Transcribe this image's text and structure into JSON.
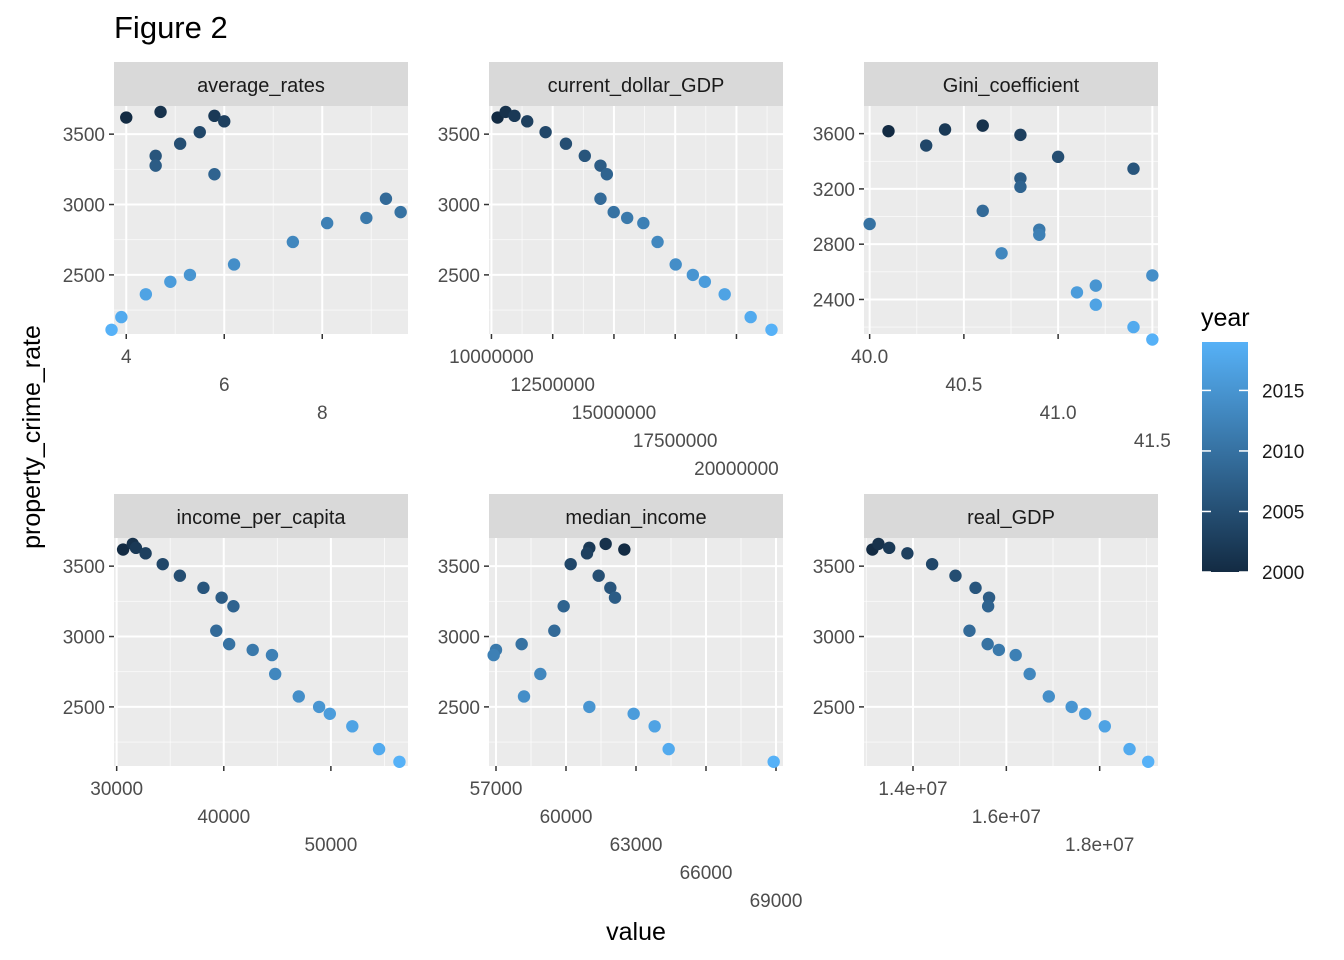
{
  "page": {
    "title": "Figure 2"
  },
  "chart_data": {
    "type": "scatter",
    "title": "Figure 2",
    "xlabel": "value",
    "ylabel": "property_crime_rate",
    "legend": {
      "title": "year",
      "placement": "right",
      "ticks": [
        2000,
        2005,
        2010,
        2015
      ],
      "range": [
        2000,
        2019
      ],
      "colors": {
        "low": "#132b43",
        "high": "#56b1f7"
      }
    },
    "grid": true,
    "colors": {
      "panel_bg": "#ebebeb",
      "strip_bg": "#d9d9d9",
      "grid_major": "#ffffff"
    },
    "panels": [
      {
        "name": "average_rates",
        "xlim": [
          3.75,
          9.75
        ],
        "ylim": [
          2080,
          3700
        ],
        "x_ticks": [
          4,
          6,
          8
        ],
        "x_tick_labels": [
          "4",
          "6",
          "8"
        ],
        "y_ticks": [
          2500,
          3000,
          3500
        ],
        "y_tick_labels": [
          "2500",
          "3000",
          "3500"
        ],
        "points": [
          {
            "x": 4.0,
            "y": 3618,
            "year": 2000
          },
          {
            "x": 4.7,
            "y": 3658,
            "year": 2001
          },
          {
            "x": 5.8,
            "y": 3630,
            "year": 2002
          },
          {
            "x": 6.0,
            "y": 3591,
            "year": 2003
          },
          {
            "x": 5.5,
            "y": 3514,
            "year": 2004
          },
          {
            "x": 5.1,
            "y": 3432,
            "year": 2005
          },
          {
            "x": 4.6,
            "y": 3346,
            "year": 2006
          },
          {
            "x": 4.6,
            "y": 3276,
            "year": 2007
          },
          {
            "x": 5.8,
            "y": 3215,
            "year": 2008
          },
          {
            "x": 9.3,
            "y": 3041,
            "year": 2009
          },
          {
            "x": 9.6,
            "y": 2946,
            "year": 2010
          },
          {
            "x": 8.9,
            "y": 2905,
            "year": 2011
          },
          {
            "x": 8.1,
            "y": 2868,
            "year": 2012
          },
          {
            "x": 7.4,
            "y": 2734,
            "year": 2013
          },
          {
            "x": 6.2,
            "y": 2574,
            "year": 2014
          },
          {
            "x": 5.3,
            "y": 2500,
            "year": 2015
          },
          {
            "x": 4.9,
            "y": 2451,
            "year": 2016
          },
          {
            "x": 4.4,
            "y": 2362,
            "year": 2017
          },
          {
            "x": 3.9,
            "y": 2200,
            "year": 2018
          },
          {
            "x": 3.7,
            "y": 2110,
            "year": 2019
          }
        ]
      },
      {
        "name": "current_dollar_GDP",
        "xlim": [
          9900000,
          21900000
        ],
        "ylim": [
          2080,
          3700
        ],
        "x_ticks": [
          10000000,
          12500000,
          15000000,
          17500000,
          20000000
        ],
        "x_tick_labels": [
          "10000000",
          "12500000",
          "15000000",
          "17500000",
          "20000000"
        ],
        "y_ticks": [
          2500,
          3000,
          3500
        ],
        "y_tick_labels": [
          "2500",
          "3000",
          "3500"
        ],
        "points": [
          {
            "x": 10250000,
            "y": 3618,
            "year": 2000
          },
          {
            "x": 10580000,
            "y": 3658,
            "year": 2001
          },
          {
            "x": 10940000,
            "y": 3630,
            "year": 2002
          },
          {
            "x": 11460000,
            "y": 3591,
            "year": 2003
          },
          {
            "x": 12210000,
            "y": 3514,
            "year": 2004
          },
          {
            "x": 13040000,
            "y": 3432,
            "year": 2005
          },
          {
            "x": 13810000,
            "y": 3346,
            "year": 2006
          },
          {
            "x": 14450000,
            "y": 3276,
            "year": 2007
          },
          {
            "x": 14710000,
            "y": 3215,
            "year": 2008
          },
          {
            "x": 14450000,
            "y": 3041,
            "year": 2009
          },
          {
            "x": 14990000,
            "y": 2946,
            "year": 2010
          },
          {
            "x": 15540000,
            "y": 2905,
            "year": 2011
          },
          {
            "x": 16200000,
            "y": 2868,
            "year": 2012
          },
          {
            "x": 16780000,
            "y": 2734,
            "year": 2013
          },
          {
            "x": 17520000,
            "y": 2574,
            "year": 2014
          },
          {
            "x": 18220000,
            "y": 2500,
            "year": 2015
          },
          {
            "x": 18710000,
            "y": 2451,
            "year": 2016
          },
          {
            "x": 19520000,
            "y": 2362,
            "year": 2017
          },
          {
            "x": 20580000,
            "y": 2200,
            "year": 2018
          },
          {
            "x": 21430000,
            "y": 2110,
            "year": 2019
          }
        ]
      },
      {
        "name": "Gini_coefficient",
        "xlim": [
          39.97,
          41.53
        ],
        "ylim": [
          2150,
          3800
        ],
        "x_ticks": [
          40.0,
          40.5,
          41.0,
          41.5
        ],
        "x_tick_labels": [
          "40.0",
          "40.5",
          "41.0",
          "41.5"
        ],
        "y_ticks": [
          2400,
          2800,
          3200,
          3600
        ],
        "y_tick_labels": [
          "2400",
          "2800",
          "3200",
          "3600"
        ],
        "points": [
          {
            "x": 40.1,
            "y": 3618,
            "year": 2000
          },
          {
            "x": 40.6,
            "y": 3658,
            "year": 2001
          },
          {
            "x": 40.4,
            "y": 3630,
            "year": 2002
          },
          {
            "x": 40.8,
            "y": 3591,
            "year": 2003
          },
          {
            "x": 40.3,
            "y": 3514,
            "year": 2004
          },
          {
            "x": 41.0,
            "y": 3432,
            "year": 2005
          },
          {
            "x": 41.4,
            "y": 3346,
            "year": 2006
          },
          {
            "x": 40.8,
            "y": 3276,
            "year": 2007
          },
          {
            "x": 40.8,
            "y": 3215,
            "year": 2008
          },
          {
            "x": 40.6,
            "y": 3041,
            "year": 2009
          },
          {
            "x": 40.0,
            "y": 2946,
            "year": 2010
          },
          {
            "x": 40.9,
            "y": 2905,
            "year": 2011
          },
          {
            "x": 40.9,
            "y": 2868,
            "year": 2012
          },
          {
            "x": 40.7,
            "y": 2734,
            "year": 2013
          },
          {
            "x": 41.5,
            "y": 2574,
            "year": 2014
          },
          {
            "x": 41.2,
            "y": 2500,
            "year": 2015
          },
          {
            "x": 41.1,
            "y": 2451,
            "year": 2016
          },
          {
            "x": 41.2,
            "y": 2362,
            "year": 2017
          },
          {
            "x": 41.4,
            "y": 2200,
            "year": 2018
          },
          {
            "x": 41.5,
            "y": 2110,
            "year": 2019
          }
        ]
      },
      {
        "name": "income_per_capita",
        "xlim": [
          29750,
          57200
        ],
        "ylim": [
          2080,
          3700
        ],
        "x_ticks": [
          30000,
          40000,
          50000
        ],
        "x_tick_labels": [
          "30000",
          "40000",
          "50000"
        ],
        "y_ticks": [
          2500,
          3000,
          3500
        ],
        "y_tick_labels": [
          "2500",
          "3000",
          "3500"
        ],
        "points": [
          {
            "x": 30600,
            "y": 3618,
            "year": 2000
          },
          {
            "x": 31500,
            "y": 3658,
            "year": 2001
          },
          {
            "x": 31800,
            "y": 3630,
            "year": 2002
          },
          {
            "x": 32700,
            "y": 3591,
            "year": 2003
          },
          {
            "x": 34300,
            "y": 3514,
            "year": 2004
          },
          {
            "x": 35900,
            "y": 3432,
            "year": 2005
          },
          {
            "x": 38100,
            "y": 3346,
            "year": 2006
          },
          {
            "x": 39800,
            "y": 3276,
            "year": 2007
          },
          {
            "x": 40900,
            "y": 3215,
            "year": 2008
          },
          {
            "x": 39300,
            "y": 3041,
            "year": 2009
          },
          {
            "x": 40500,
            "y": 2946,
            "year": 2010
          },
          {
            "x": 42700,
            "y": 2905,
            "year": 2011
          },
          {
            "x": 44500,
            "y": 2868,
            "year": 2012
          },
          {
            "x": 44800,
            "y": 2734,
            "year": 2013
          },
          {
            "x": 47000,
            "y": 2574,
            "year": 2014
          },
          {
            "x": 48900,
            "y": 2500,
            "year": 2015
          },
          {
            "x": 49900,
            "y": 2451,
            "year": 2016
          },
          {
            "x": 52000,
            "y": 2362,
            "year": 2017
          },
          {
            "x": 54500,
            "y": 2200,
            "year": 2018
          },
          {
            "x": 56400,
            "y": 2110,
            "year": 2019
          }
        ]
      },
      {
        "name": "median_income",
        "xlim": [
          56700,
          69300
        ],
        "ylim": [
          2080,
          3700
        ],
        "x_ticks": [
          57000,
          60000,
          63000,
          66000,
          69000
        ],
        "x_tick_labels": [
          "57000",
          "60000",
          "63000",
          "66000",
          "69000"
        ],
        "y_ticks": [
          2500,
          3000,
          3500
        ],
        "y_tick_labels": [
          "2500",
          "3000",
          "3500"
        ],
        "points": [
          {
            "x": 62500,
            "y": 3618,
            "year": 2000
          },
          {
            "x": 61700,
            "y": 3658,
            "year": 2001
          },
          {
            "x": 61000,
            "y": 3630,
            "year": 2002
          },
          {
            "x": 60900,
            "y": 3591,
            "year": 2003
          },
          {
            "x": 60200,
            "y": 3514,
            "year": 2004
          },
          {
            "x": 61400,
            "y": 3432,
            "year": 2005
          },
          {
            "x": 61900,
            "y": 3346,
            "year": 2006
          },
          {
            "x": 62100,
            "y": 3276,
            "year": 2007
          },
          {
            "x": 59900,
            "y": 3215,
            "year": 2008
          },
          {
            "x": 59500,
            "y": 3041,
            "year": 2009
          },
          {
            "x": 58100,
            "y": 2946,
            "year": 2010
          },
          {
            "x": 57000,
            "y": 2905,
            "year": 2011
          },
          {
            "x": 56900,
            "y": 2868,
            "year": 2012
          },
          {
            "x": 58900,
            "y": 2734,
            "year": 2013
          },
          {
            "x": 58200,
            "y": 2574,
            "year": 2014
          },
          {
            "x": 61000,
            "y": 2500,
            "year": 2015
          },
          {
            "x": 62900,
            "y": 2451,
            "year": 2016
          },
          {
            "x": 63800,
            "y": 2362,
            "year": 2017
          },
          {
            "x": 64400,
            "y": 2200,
            "year": 2018
          },
          {
            "x": 68900,
            "y": 2110,
            "year": 2019
          }
        ]
      },
      {
        "name": "real_GDP",
        "xlim": [
          12950000,
          19250000
        ],
        "ylim": [
          2080,
          3700
        ],
        "x_ticks": [
          14000000,
          16000000,
          18000000
        ],
        "x_tick_labels": [
          "1.4e+07",
          "1.6e+07",
          "1.8e+07"
        ],
        "y_ticks": [
          2500,
          3000,
          3500
        ],
        "y_tick_labels": [
          "2500",
          "3000",
          "3500"
        ],
        "points": [
          {
            "x": 13130000,
            "y": 3618,
            "year": 2000
          },
          {
            "x": 13260000,
            "y": 3658,
            "year": 2001
          },
          {
            "x": 13490000,
            "y": 3630,
            "year": 2002
          },
          {
            "x": 13880000,
            "y": 3591,
            "year": 2003
          },
          {
            "x": 14410000,
            "y": 3514,
            "year": 2004
          },
          {
            "x": 14910000,
            "y": 3432,
            "year": 2005
          },
          {
            "x": 15340000,
            "y": 3346,
            "year": 2006
          },
          {
            "x": 15630000,
            "y": 3276,
            "year": 2007
          },
          {
            "x": 15610000,
            "y": 3215,
            "year": 2008
          },
          {
            "x": 15210000,
            "y": 3041,
            "year": 2009
          },
          {
            "x": 15600000,
            "y": 2946,
            "year": 2010
          },
          {
            "x": 15840000,
            "y": 2905,
            "year": 2011
          },
          {
            "x": 16200000,
            "y": 2868,
            "year": 2012
          },
          {
            "x": 16500000,
            "y": 2734,
            "year": 2013
          },
          {
            "x": 16910000,
            "y": 2574,
            "year": 2014
          },
          {
            "x": 17400000,
            "y": 2500,
            "year": 2015
          },
          {
            "x": 17690000,
            "y": 2451,
            "year": 2016
          },
          {
            "x": 18110000,
            "y": 2362,
            "year": 2017
          },
          {
            "x": 18640000,
            "y": 2200,
            "year": 2018
          },
          {
            "x": 19040000,
            "y": 2110,
            "year": 2019
          }
        ]
      }
    ]
  }
}
